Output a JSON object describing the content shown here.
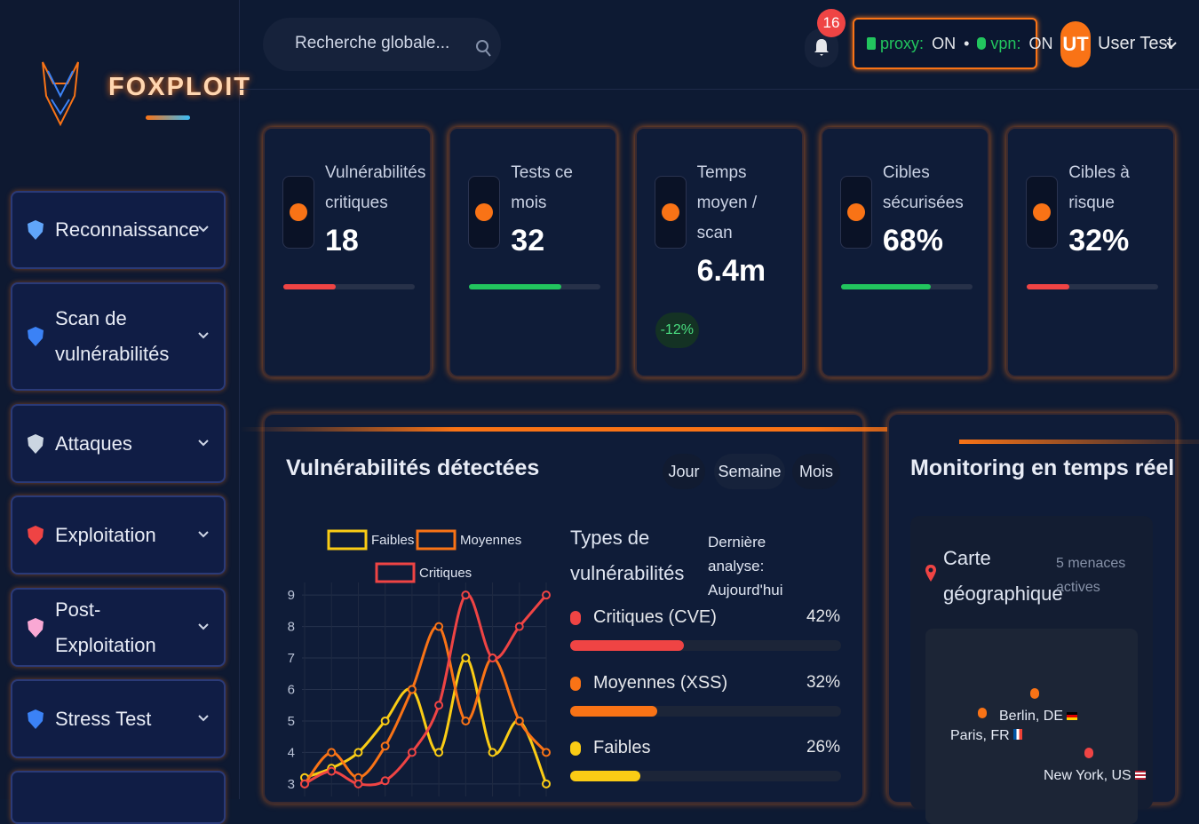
{
  "brand": "FOXPLOIT",
  "search": {
    "placeholder": "Recherche globale..."
  },
  "notifications": 16,
  "status": {
    "proxy_label": "proxy:",
    "proxy_state": "ON",
    "vpn_label": "vpn:",
    "vpn_state": "ON"
  },
  "user": {
    "initials": "UT",
    "name": "User Test"
  },
  "nav": [
    "Reconnaissance",
    "Scan de vulnérabilités",
    "Attaques",
    "Exploitation",
    "Post-Exploitation",
    "Stress Test"
  ],
  "stats": [
    {
      "label": "Vulnérabilités critiques",
      "value": "18",
      "progress": 40,
      "color": "#ef4444"
    },
    {
      "label": "Tests ce mois",
      "value": "32",
      "progress": 70,
      "color": "#22c55e"
    },
    {
      "label": "Temps moyen / scan",
      "value": "6.4m",
      "badge": "-12%"
    },
    {
      "label": "Cibles sécurisées",
      "value": "68%",
      "progress": 68,
      "color": "#22c55e"
    },
    {
      "label": "Cibles à risque",
      "value": "32%",
      "progress": 32,
      "color": "#ef4444"
    }
  ],
  "period_tabs": [
    "Jour",
    "Semaine",
    "Mois"
  ],
  "chart_data": {
    "type": "line",
    "title": "Vulnérabilités détectées",
    "categories": [
      null,
      null,
      null,
      null,
      null,
      null,
      null,
      null,
      null,
      null
    ],
    "series": [
      {
        "name": "Faibles",
        "color": "#facc15",
        "values": [
          3.2,
          3.5,
          4,
          5,
          6,
          4,
          7,
          4,
          5,
          3
        ]
      },
      {
        "name": "Moyennes",
        "color": "#f97316",
        "values": [
          3,
          4,
          3.2,
          4.2,
          6,
          8,
          5,
          7,
          5,
          4
        ]
      },
      {
        "name": "Critiques",
        "color": "#ef4444",
        "values": [
          3,
          3.4,
          3,
          3.1,
          4,
          5.5,
          9,
          7,
          8,
          9
        ]
      }
    ],
    "ylim": [
      2.6,
      9.4
    ],
    "yticks": [
      3,
      4,
      5,
      6,
      7,
      8,
      9
    ],
    "grid": true
  },
  "types_panel": {
    "title": "Types de vulnérabilités",
    "last_analysis": "Dernière analyse: Aujourd'hui",
    "items": [
      {
        "name": "Critiques (CVE)",
        "value": 42,
        "value_label": "42%",
        "color": "#ef4444"
      },
      {
        "name": "Moyennes (XSS)",
        "value": 32,
        "value_label": "32%",
        "color": "#f97316"
      },
      {
        "name": "Faibles",
        "value": 26,
        "value_label": "26%",
        "color": "#facc15"
      }
    ]
  },
  "monitoring": {
    "title": "Monitoring en temps réel",
    "map_title": "Carte géographique",
    "threats": "5 menaces actives",
    "locations": [
      "Berlin, DE",
      "Paris, FR",
      "New York, US"
    ]
  }
}
